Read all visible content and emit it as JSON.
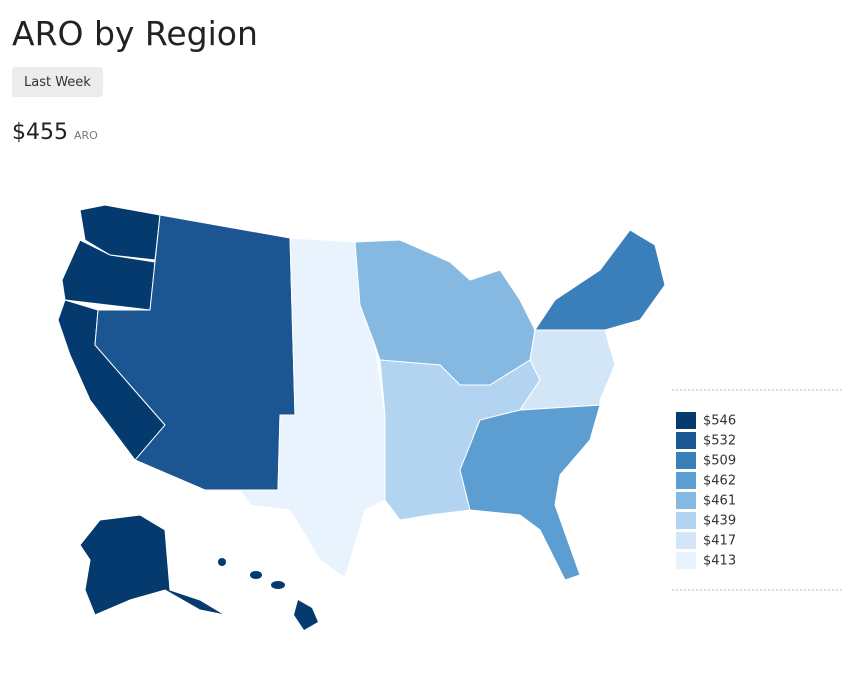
{
  "header": {
    "title": "ARO by Region",
    "filter_button": "Last Week"
  },
  "metric": {
    "value": "$455",
    "label": "ARO"
  },
  "legend": {
    "items": [
      {
        "label": "$546",
        "color": "#053a6e"
      },
      {
        "label": "$532",
        "color": "#1b5693"
      },
      {
        "label": "$509",
        "color": "#3a7fba"
      },
      {
        "label": "$462",
        "color": "#5d9ed2"
      },
      {
        "label": "$461",
        "color": "#86b9e2"
      },
      {
        "label": "$439",
        "color": "#b2d4f1"
      },
      {
        "label": "$417",
        "color": "#d3e6f7"
      },
      {
        "label": "$413",
        "color": "#e8f3fd"
      }
    ]
  }
}
